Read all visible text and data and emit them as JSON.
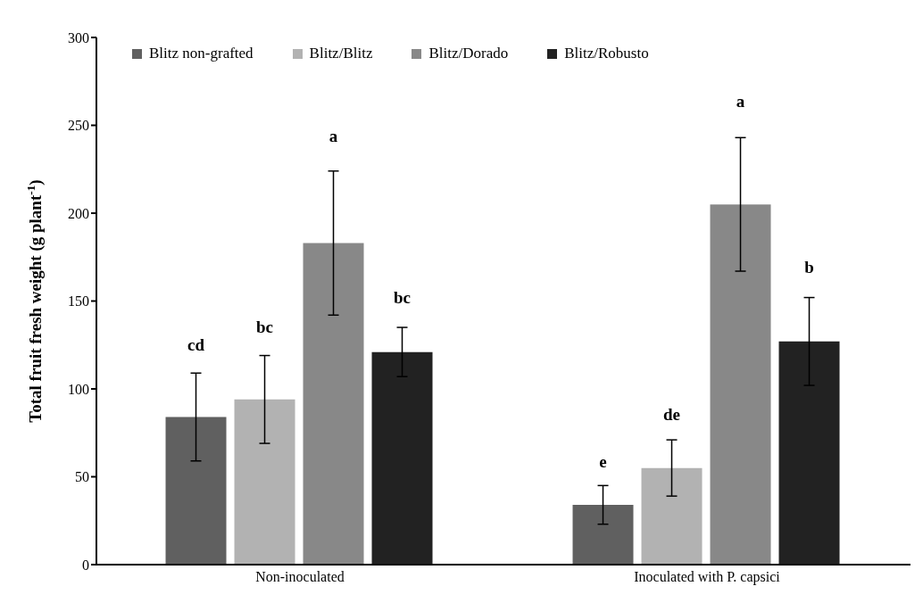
{
  "chart_data": {
    "type": "bar",
    "ylabel": "Total fruit fresh weight (g plant$^{-1}$)",
    "categories": [
      "Non-inoculated",
      "Inoculated with P. capsici"
    ],
    "series": [
      {
        "name": "Blitz non-grafted",
        "color": "#606060",
        "values": [
          84,
          34
        ],
        "errors": [
          25,
          11
        ]
      },
      {
        "name": "Blitz/Blitz",
        "color": "#b2b2b2",
        "values": [
          94,
          55
        ],
        "errors": [
          25,
          16
        ]
      },
      {
        "name": "Blitz/Dorado",
        "color": "#888888",
        "values": [
          183,
          205
        ],
        "errors": [
          41,
          38
        ]
      },
      {
        "name": "Blitz/Robusto",
        "color": "#222222",
        "values": [
          121,
          127
        ],
        "errors": [
          14,
          25
        ]
      }
    ],
    "ylim": [
      0,
      300
    ],
    "yticks": [
      0,
      50,
      100,
      150,
      200,
      250,
      300
    ],
    "grid": false,
    "legend": "top",
    "annotations": [
      "cd",
      "bc",
      "a",
      "bc",
      "e",
      "de",
      "a",
      "b"
    ]
  }
}
